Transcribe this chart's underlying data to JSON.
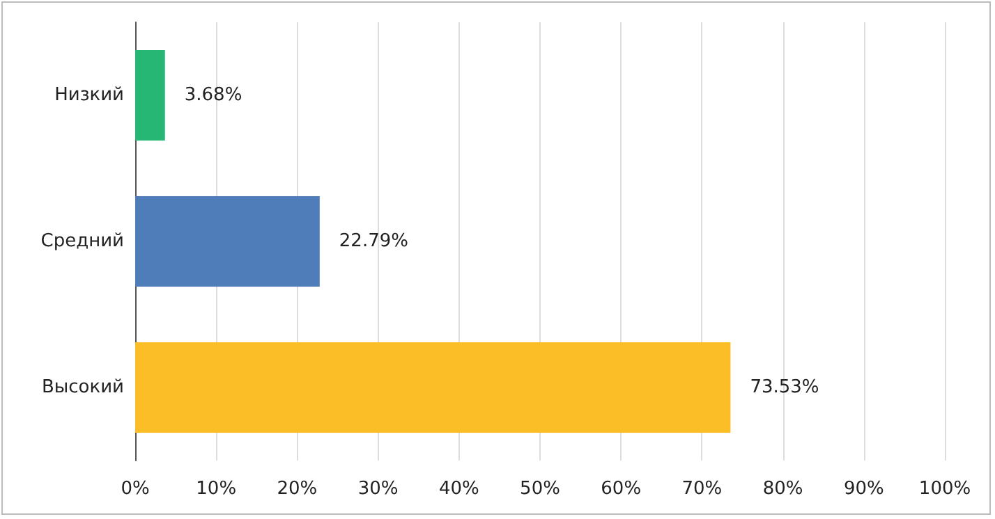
{
  "chart_data": {
    "type": "bar",
    "orientation": "horizontal",
    "categories": [
      "Низкий",
      "Средний",
      "Высокий"
    ],
    "values": [
      3.68,
      22.79,
      73.53
    ],
    "colors": [
      "#27b774",
      "#4e7dba",
      "#fbbe26"
    ],
    "value_labels": [
      "3.68%",
      "22.79%",
      "73.53%"
    ],
    "xlim": [
      0,
      100
    ],
    "xticks": [
      {
        "value": 0,
        "label": "0%"
      },
      {
        "value": 10,
        "label": "10%"
      },
      {
        "value": 20,
        "label": "20%"
      },
      {
        "value": 30,
        "label": "30%"
      },
      {
        "value": 40,
        "label": "40%"
      },
      {
        "value": 50,
        "label": "50%"
      },
      {
        "value": 60,
        "label": "60%"
      },
      {
        "value": 70,
        "label": "70%"
      },
      {
        "value": 80,
        "label": "80%"
      },
      {
        "value": 90,
        "label": "90%"
      },
      {
        "value": 100,
        "label": "100%"
      }
    ],
    "grid": "x"
  }
}
